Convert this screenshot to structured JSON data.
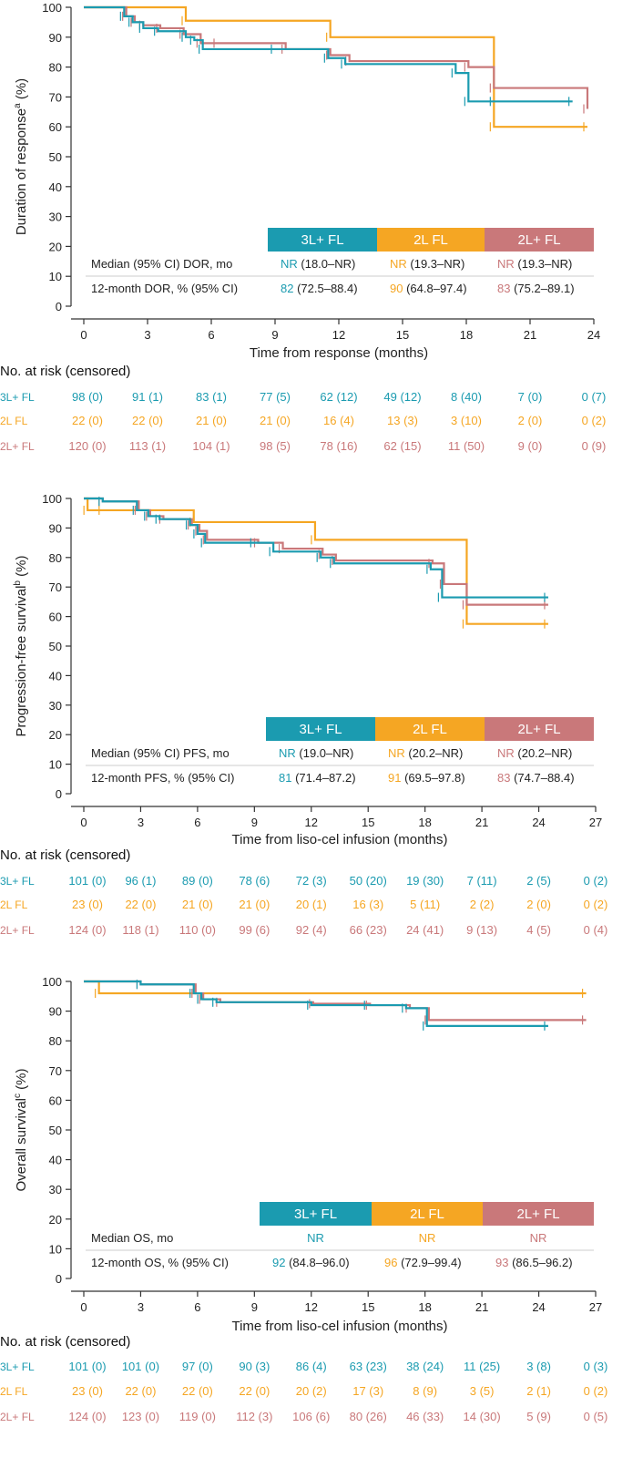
{
  "colors": {
    "3L+ FL": "#1b9bb0",
    "2L FL": "#f5a623",
    "2L+ FL": "#c9787a",
    "axis": "#333333",
    "text": "#222222",
    "band_3L": "#1b9bb0",
    "band_2L": "#f5a623",
    "band_2Lplus": "#c9787a"
  },
  "chart_data": [
    {
      "type": "line",
      "ylabel": "Duration of response (%)",
      "ylabel_superscript": "a",
      "xlabel": "Time from response (months)",
      "xlim": [
        0,
        24
      ],
      "ylim": [
        0,
        100
      ],
      "xticks": [
        0,
        3,
        6,
        9,
        12,
        15,
        18,
        21,
        24
      ],
      "yticks": [
        0,
        10,
        20,
        30,
        40,
        50,
        60,
        70,
        80,
        90,
        100
      ],
      "series": [
        {
          "name": "3L+ FL",
          "x": [
            0,
            1.9,
            2.3,
            2.8,
            3.5,
            4.8,
            5.2,
            5.6,
            9.0,
            11.5,
            12.3,
            17.5,
            18.1,
            19.3,
            23.0
          ],
          "y": [
            100,
            97,
            95,
            93,
            92,
            90,
            89,
            86,
            86,
            83,
            81,
            78,
            68.5,
            68.5,
            68.5
          ]
        },
        {
          "name": "2L FL",
          "x": [
            0,
            4.8,
            11.6,
            19.3,
            23.7
          ],
          "y": [
            100,
            95.5,
            90,
            60,
            60
          ]
        },
        {
          "name": "2L+ FL",
          "x": [
            0,
            2.0,
            2.4,
            2.8,
            3.6,
            4.7,
            5.5,
            6.3,
            9.5,
            11.6,
            12.5,
            18.1,
            19.3,
            23.7
          ],
          "y": [
            100,
            97,
            95,
            94,
            93,
            91,
            88,
            88,
            86,
            84,
            82,
            80,
            73,
            66
          ]
        }
      ],
      "table": {
        "row1_label": "Median (95% CI) DOR, mo",
        "row2_label": "12-month DOR, % (95% CI)",
        "groups": [
          {
            "name": "3L+ FL",
            "row1_main": "NR",
            "row1_rest": " (18.0–NR)",
            "row2_main": "82",
            "row2_rest": " (72.5–88.4)"
          },
          {
            "name": "2L FL",
            "row1_main": "NR",
            "row1_rest": " (19.3–NR)",
            "row2_main": "90",
            "row2_rest": " (64.8–97.4)"
          },
          {
            "name": "2L+ FL",
            "row1_main": "NR",
            "row1_rest": " (19.3–NR)",
            "row2_main": "83",
            "row2_rest": " (75.2–89.1)"
          }
        ]
      },
      "risk": {
        "title": "No. at risk (censored)",
        "rows": [
          {
            "label": "3L+ FL",
            "values": [
              "98 (0)",
              "91 (1)",
              "83 (1)",
              "77 (5)",
              "62 (12)",
              "49 (12)",
              "8 (40)",
              "7 (0)",
              "0 (7)"
            ]
          },
          {
            "label": "2L FL",
            "values": [
              "22 (0)",
              "22 (0)",
              "21 (0)",
              "21 (0)",
              "16 (4)",
              "13 (3)",
              "3 (10)",
              "2 (0)",
              "0 (2)"
            ]
          },
          {
            "label": "2L+ FL",
            "values": [
              "120 (0)",
              "113 (1)",
              "104 (1)",
              "98 (5)",
              "78 (16)",
              "62 (15)",
              "11 (50)",
              "9 (0)",
              "0 (9)"
            ]
          }
        ]
      }
    },
    {
      "type": "line",
      "ylabel": "Progression-free survival (%)",
      "ylabel_superscript": "b",
      "xlabel": "Time from liso-cel infusion (months)",
      "xlim": [
        0,
        27
      ],
      "ylim": [
        0,
        100
      ],
      "xticks": [
        0,
        3,
        6,
        9,
        12,
        15,
        18,
        21,
        24,
        27
      ],
      "yticks": [
        0,
        10,
        20,
        30,
        40,
        50,
        60,
        70,
        80,
        90,
        100
      ],
      "series": [
        {
          "name": "3L+ FL",
          "x": [
            0,
            1.0,
            2.8,
            3.4,
            4.0,
            5.6,
            6.0,
            6.4,
            9.0,
            10.0,
            12.5,
            13.2,
            18.3,
            18.9,
            24.5
          ],
          "y": [
            100,
            99,
            96,
            94,
            93,
            91,
            88,
            85,
            85,
            82,
            80,
            78,
            76,
            66.5,
            66.5
          ]
        },
        {
          "name": "2L FL",
          "x": [
            0,
            0.2,
            1.0,
            5.8,
            12.2,
            20.2,
            24.5
          ],
          "y": [
            100,
            96,
            96,
            92,
            86,
            57.5,
            57.5
          ]
        },
        {
          "name": "2L+ FL",
          "x": [
            0,
            1.0,
            2.9,
            3.5,
            4.2,
            5.7,
            6.1,
            6.5,
            9.2,
            10.5,
            12.6,
            13.3,
            18.4,
            19.0,
            20.2,
            24.5
          ],
          "y": [
            100,
            99,
            96,
            94,
            93,
            91,
            89,
            86,
            85,
            83,
            81,
            79,
            78,
            71,
            64,
            64
          ]
        }
      ],
      "table": {
        "row1_label": "Median (95% CI) PFS, mo",
        "row2_label": "12-month PFS, % (95% CI)",
        "groups": [
          {
            "name": "3L+ FL",
            "row1_main": "NR",
            "row1_rest": " (19.0–NR)",
            "row2_main": "81",
            "row2_rest": " (71.4–87.2)"
          },
          {
            "name": "2L FL",
            "row1_main": "NR",
            "row1_rest": " (20.2–NR)",
            "row2_main": "91",
            "row2_rest": " (69.5–97.8)"
          },
          {
            "name": "2L+ FL",
            "row1_main": "NR",
            "row1_rest": " (20.2–NR)",
            "row2_main": "83",
            "row2_rest": " (74.7–88.4)"
          }
        ]
      },
      "risk": {
        "title": "No. at risk (censored)",
        "rows": [
          {
            "label": "3L+ FL",
            "values": [
              "101 (0)",
              "96 (1)",
              "89 (0)",
              "78 (6)",
              "72 (3)",
              "50 (20)",
              "19 (30)",
              "7 (11)",
              "2 (5)",
              "0 (2)"
            ]
          },
          {
            "label": "2L FL",
            "values": [
              "23 (0)",
              "22 (0)",
              "21 (0)",
              "21 (0)",
              "20 (1)",
              "16 (3)",
              "5 (11)",
              "2 (2)",
              "2 (0)",
              "0 (2)"
            ]
          },
          {
            "label": "2L+ FL",
            "values": [
              "124 (0)",
              "118 (1)",
              "110 (0)",
              "99 (6)",
              "92 (4)",
              "66 (23)",
              "24 (41)",
              "9 (13)",
              "4 (5)",
              "0 (4)"
            ]
          }
        ]
      }
    },
    {
      "type": "line",
      "ylabel": "Overall survival (%)",
      "ylabel_superscript": "c",
      "xlabel": "Time from liso-cel infusion (months)",
      "xlim": [
        0,
        27
      ],
      "ylim": [
        0,
        100
      ],
      "xticks": [
        0,
        3,
        6,
        9,
        12,
        15,
        18,
        21,
        24,
        27
      ],
      "yticks": [
        0,
        10,
        20,
        30,
        40,
        50,
        60,
        70,
        80,
        90,
        100
      ],
      "series": [
        {
          "name": "3L+ FL",
          "x": [
            0,
            3.0,
            5.8,
            6.2,
            7.0,
            12.0,
            15.0,
            17.0,
            18.1,
            24.5
          ],
          "y": [
            100,
            99,
            96,
            94,
            93,
            92,
            92,
            91,
            85,
            85
          ]
        },
        {
          "name": "2L FL",
          "x": [
            0,
            0.8,
            26.5
          ],
          "y": [
            100,
            96,
            96
          ]
        },
        {
          "name": "2L+ FL",
          "x": [
            0,
            3.0,
            5.9,
            6.3,
            7.2,
            12.1,
            15.1,
            17.2,
            18.2,
            26.5
          ],
          "y": [
            100,
            99,
            96,
            94,
            93,
            92.5,
            92,
            91,
            87,
            87
          ]
        }
      ],
      "table": {
        "row1_label": "Median OS, mo",
        "row2_label": "12-month OS, % (95% CI)",
        "groups": [
          {
            "name": "3L+ FL",
            "row1_main": "NR",
            "row1_rest": "",
            "row2_main": "92",
            "row2_rest": " (84.8–96.0)"
          },
          {
            "name": "2L FL",
            "row1_main": "NR",
            "row1_rest": "",
            "row2_main": "96",
            "row2_rest": " (72.9–99.4)"
          },
          {
            "name": "2L+ FL",
            "row1_main": "NR",
            "row1_rest": "",
            "row2_main": "93",
            "row2_rest": " (86.5–96.2)"
          }
        ]
      },
      "risk": {
        "title": "No. at risk (censored)",
        "rows": [
          {
            "label": "3L+ FL",
            "values": [
              "101 (0)",
              "101 (0)",
              "97 (0)",
              "90 (3)",
              "86 (4)",
              "63 (23)",
              "38 (24)",
              "11 (25)",
              "3 (8)",
              "0 (3)"
            ]
          },
          {
            "label": "2L FL",
            "values": [
              "23 (0)",
              "22 (0)",
              "22 (0)",
              "22 (0)",
              "20 (2)",
              "17 (3)",
              "8 (9)",
              "3 (5)",
              "2 (1)",
              "0 (2)"
            ]
          },
          {
            "label": "2L+ FL",
            "values": [
              "124 (0)",
              "123 (0)",
              "119 (0)",
              "112 (3)",
              "106 (6)",
              "80 (26)",
              "46 (33)",
              "14 (30)",
              "5 (9)",
              "0 (5)"
            ]
          }
        ]
      }
    }
  ]
}
